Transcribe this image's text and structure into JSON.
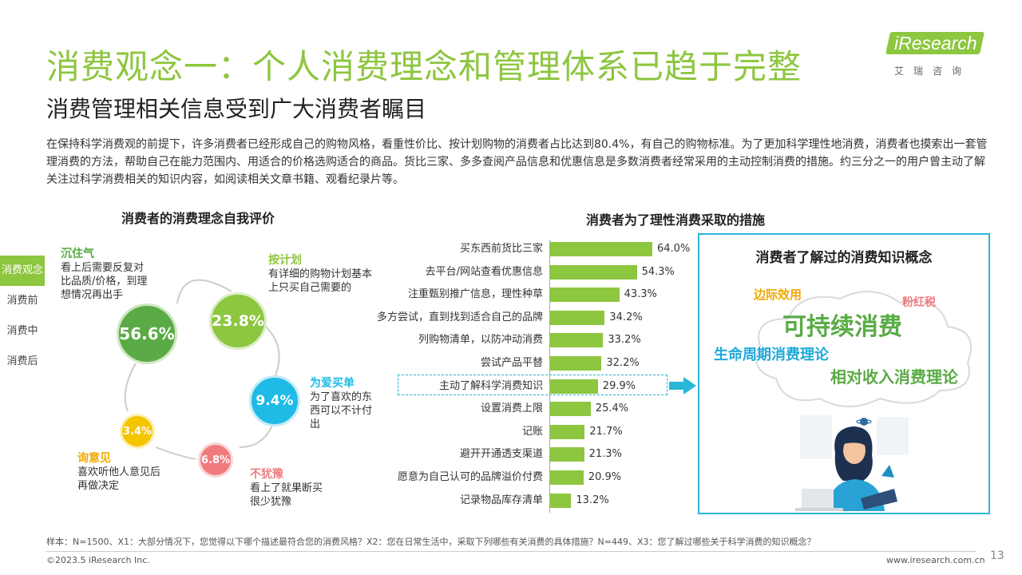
{
  "header": {
    "title": "消费观念一：个人消费理念和管理体系已趋于完整",
    "subtitle": "消费管理相关信息受到广大消费者瞩目",
    "logo_text": "iResearch",
    "logo_cn": "艾瑞咨询"
  },
  "intro": "在保持科学消费观的前提下，许多消费者已经形成自己的购物风格，看重性价比、按计划购物的消费者占比达到80.4%，有自己的购物标准。为了更加科学理性地消费，消费者也摸索出一套管理消费的方法，帮助自己在能力范围内、用适合的价格选购适合的商品。货比三家、多多查阅产品信息和优惠信息是多数消费者经常采用的主动控制消费的措施。约三分之一的用户曾主动了解关注过科学消费相关的知识内容，如阅读相关文章书籍、观看纪录片等。",
  "sidebar": {
    "items": [
      {
        "label": "消费观念",
        "active": true
      },
      {
        "label": "消费前",
        "active": false
      },
      {
        "label": "消费中",
        "active": false
      },
      {
        "label": "消费后",
        "active": false
      }
    ]
  },
  "left_chart": {
    "title": "消费者的消费理念自我评价",
    "nodes": [
      {
        "name": "沉住气",
        "value": "56.6%",
        "desc": "看上后需要反复对比品质/价格，到理想情况再出手",
        "color": "#5aab46"
      },
      {
        "name": "按计划",
        "value": "23.8%",
        "desc": "有详细的购物计划基本上只买自己需要的",
        "color": "#8dc63f"
      },
      {
        "name": "为爱买单",
        "value": "9.4%",
        "desc": "为了喜欢的东西可以不计付出",
        "color": "#1fbbe6"
      },
      {
        "name": "不犹豫",
        "value": "6.8%",
        "desc": "看上了就果断买很少犹豫",
        "color": "#f07b7e"
      },
      {
        "name": "询意见",
        "value": "3.4%",
        "desc": "喜欢听他人意见后再做决定",
        "color": "#f5c500"
      }
    ]
  },
  "right_chart": {
    "title": "消费者为了理性消费采取的措施"
  },
  "chart_data": {
    "type": "bar",
    "orientation": "horizontal",
    "title": "消费者为了理性消费采取的措施",
    "categories": [
      "买东西前货比三家",
      "去平台/网站查看优惠信息",
      "注重甄别推广信息，理性种草",
      "多方尝试，直到找到适合自己的品牌",
      "列购物清单，以防冲动消费",
      "尝试产品平替",
      "主动了解科学消费知识",
      "设置消费上限",
      "记账",
      "避开开通透支渠道",
      "愿意为自己认可的品牌溢价付费",
      "记录物品库存清单"
    ],
    "values": [
      64.0,
      54.3,
      43.3,
      34.2,
      33.2,
      32.2,
      29.9,
      25.4,
      21.7,
      21.3,
      20.9,
      13.2
    ],
    "value_labels": [
      "64.0%",
      "54.3%",
      "43.3%",
      "34.2%",
      "33.2%",
      "32.2%",
      "29.9%",
      "25.4%",
      "21.7%",
      "21.3%",
      "20.9%",
      "13.2%"
    ],
    "highlight_index": 6,
    "xlim": [
      0,
      100
    ],
    "bar_color": "#8dc63f"
  },
  "panel": {
    "title": "消费者了解过的消费知识概念",
    "words": [
      {
        "text": "边际效用",
        "color": "#f0a800"
      },
      {
        "text": "可持续消费",
        "color": "#5aab46"
      },
      {
        "text": "粉红税",
        "color": "#f07b7e"
      },
      {
        "text": "生命周期消费理论",
        "color": "#1fa9d8"
      },
      {
        "text": "相对收入消费理论",
        "color": "#5aab46"
      }
    ]
  },
  "footer": {
    "note": "样本：N=1500、X1：大部分情况下，您觉得以下哪个描述最符合您的消费风格？X2：您在日常生活中，采取下列哪些有关消费的具体措施？N=449、X3：您了解过哪些关于科学消费的知识概念？",
    "copyright": "©2023.5 iResearch Inc.",
    "url": "www.iresearch.com.cn",
    "page": "13"
  }
}
